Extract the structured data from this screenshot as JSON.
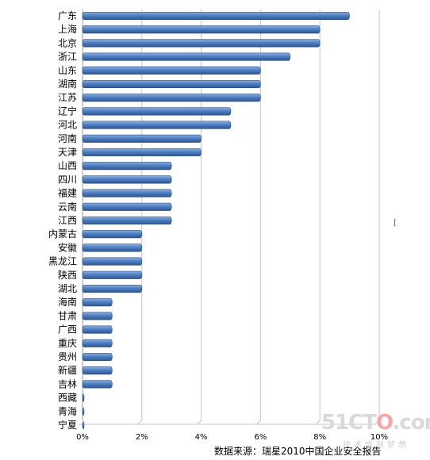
{
  "chart_data": {
    "type": "bar",
    "orientation": "horizontal",
    "categories": [
      "广东",
      "上海",
      "北京",
      "浙江",
      "山东",
      "湖南",
      "江苏",
      "辽宁",
      "河北",
      "河南",
      "天津",
      "山西",
      "四川",
      "福建",
      "云南",
      "江西",
      "内蒙古",
      "安徽",
      "黑龙江",
      "陕西",
      "湖北",
      "海南",
      "甘肃",
      "广西",
      "重庆",
      "贵州",
      "新疆",
      "吉林",
      "西藏",
      "青海",
      "宁夏"
    ],
    "values": [
      9,
      8,
      8,
      7,
      6,
      6,
      6,
      5,
      5,
      4,
      4,
      3,
      3,
      3,
      3,
      3,
      2,
      2,
      2,
      2,
      2,
      1,
      1,
      1,
      1,
      1,
      1,
      1,
      0,
      0,
      0
    ],
    "xlim": [
      0,
      10
    ],
    "xticks": [
      "0%",
      "2%",
      "4%",
      "6%",
      "8%",
      "10%"
    ],
    "grid": "vertical",
    "bar_color": "#4a78b8",
    "source": "数据来源：瑞星2010中国企业安全报告"
  },
  "side_mark": "[",
  "watermark": {
    "brand_a": "51CT",
    "brand_o": "O",
    "brand_b": ".com",
    "tagline": "技术成就梦想"
  }
}
